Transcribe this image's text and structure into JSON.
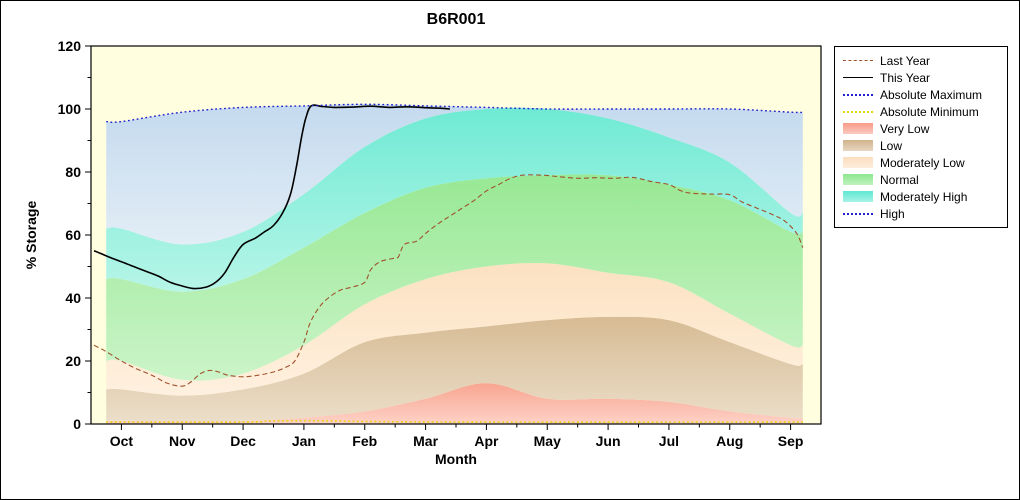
{
  "title": "B6R001",
  "chart_data": {
    "type": "area",
    "title": "B6R001",
    "xlabel": "Month",
    "ylabel": "% Storage",
    "xlim": [
      -0.5,
      11.5
    ],
    "ylim": [
      0,
      120
    ],
    "y_major_ticks": [
      0,
      20,
      40,
      60,
      80,
      100,
      120
    ],
    "y_minor_ticks": [
      10,
      30,
      50,
      70,
      90,
      110
    ],
    "x_tick_labels": [
      "Oct",
      "Nov",
      "Dec",
      "Jan",
      "Feb",
      "Mar",
      "Apr",
      "May",
      "Jun",
      "Jul",
      "Aug",
      "Sep"
    ],
    "plot_bg": "#ffffe0",
    "band_x": [
      -0.25,
      0,
      1,
      2,
      3,
      4,
      5,
      6,
      7,
      8,
      9,
      10,
      11,
      11.2
    ],
    "bands": [
      {
        "name": "Very Low",
        "color": "#f89b88",
        "top": [
          1,
          1,
          1,
          1,
          2,
          4,
          8,
          13,
          8,
          8,
          7,
          4,
          2,
          2
        ]
      },
      {
        "name": "Low",
        "color": "#d2b48c",
        "top": [
          11,
          11,
          9,
          11,
          16,
          26,
          29,
          31,
          33,
          34,
          33,
          26,
          19,
          19
        ]
      },
      {
        "name": "Moderately Low",
        "color": "#fcdebe",
        "top": [
          20,
          20,
          14,
          16,
          25,
          38,
          46,
          50,
          51,
          48,
          45,
          35,
          25,
          25
        ]
      },
      {
        "name": "Normal",
        "color": "#8ce68c",
        "top": [
          46,
          46,
          42,
          46,
          56,
          67,
          75,
          78,
          79,
          79,
          76,
          71,
          61,
          61
        ]
      },
      {
        "name": "Moderately High",
        "color": "#5fe8d2",
        "top": [
          62,
          62,
          57,
          61,
          73,
          88,
          97,
          100,
          100,
          97,
          91,
          83,
          67,
          67
        ]
      },
      {
        "name": "High",
        "color": "#bed6f0",
        "top": [
          96,
          96,
          99,
          100.5,
          101,
          101.5,
          101,
          100.5,
          100,
          100,
          100,
          100,
          99,
          99
        ]
      }
    ],
    "lines": [
      {
        "name": "Last Year",
        "color": "#a0522d",
        "style": "dashed",
        "width": 1.1,
        "points": [
          [
            -0.45,
            25
          ],
          [
            -0.25,
            23
          ],
          [
            0,
            20
          ],
          [
            0.25,
            17.5
          ],
          [
            0.5,
            15.5
          ],
          [
            0.75,
            13
          ],
          [
            1,
            12
          ],
          [
            1.15,
            13.5
          ],
          [
            1.3,
            16
          ],
          [
            1.45,
            17
          ],
          [
            1.6,
            16.5
          ],
          [
            1.75,
            15.5
          ],
          [
            2,
            15
          ],
          [
            2.25,
            15.5
          ],
          [
            2.5,
            16.5
          ],
          [
            2.7,
            18
          ],
          [
            2.85,
            20
          ],
          [
            3,
            26
          ],
          [
            3.1,
            32
          ],
          [
            3.25,
            37
          ],
          [
            3.4,
            40
          ],
          [
            3.6,
            42.5
          ],
          [
            3.8,
            43.5
          ],
          [
            4,
            45
          ],
          [
            4.1,
            49
          ],
          [
            4.25,
            51.5
          ],
          [
            4.45,
            52.5
          ],
          [
            4.55,
            53
          ],
          [
            4.65,
            57
          ],
          [
            4.85,
            58
          ],
          [
            5,
            60.5
          ],
          [
            5.2,
            63.5
          ],
          [
            5.4,
            66
          ],
          [
            5.6,
            68.5
          ],
          [
            5.8,
            71
          ],
          [
            6,
            74
          ],
          [
            6.2,
            76
          ],
          [
            6.4,
            78
          ],
          [
            6.6,
            79
          ],
          [
            6.9,
            79
          ],
          [
            7.2,
            78.5
          ],
          [
            7.5,
            78
          ],
          [
            7.8,
            78.2
          ],
          [
            8.1,
            78
          ],
          [
            8.4,
            78.3
          ],
          [
            8.7,
            77
          ],
          [
            9,
            76
          ],
          [
            9.2,
            74
          ],
          [
            9.4,
            73.2
          ],
          [
            9.7,
            73
          ],
          [
            10,
            72.8
          ],
          [
            10.2,
            70.5
          ],
          [
            10.45,
            68.5
          ],
          [
            10.7,
            66.5
          ],
          [
            10.9,
            64.5
          ],
          [
            11.1,
            60.5
          ],
          [
            11.2,
            56
          ]
        ]
      },
      {
        "name": "This Year",
        "color": "#000000",
        "style": "solid",
        "width": 1.6,
        "points": [
          [
            -0.45,
            55
          ],
          [
            -0.2,
            53
          ],
          [
            0,
            51.5
          ],
          [
            0.2,
            50
          ],
          [
            0.4,
            48.5
          ],
          [
            0.6,
            47
          ],
          [
            0.8,
            45
          ],
          [
            1,
            43.8
          ],
          [
            1.2,
            43
          ],
          [
            1.4,
            43.5
          ],
          [
            1.55,
            45
          ],
          [
            1.7,
            48
          ],
          [
            1.85,
            53
          ],
          [
            2,
            57
          ],
          [
            2.2,
            59
          ],
          [
            2.35,
            61
          ],
          [
            2.5,
            63
          ],
          [
            2.65,
            67
          ],
          [
            2.78,
            73
          ],
          [
            2.88,
            82
          ],
          [
            2.96,
            91
          ],
          [
            3.03,
            97
          ],
          [
            3.12,
            101
          ],
          [
            3.3,
            100.8
          ],
          [
            3.5,
            100.5
          ],
          [
            3.8,
            100.6
          ],
          [
            4.1,
            100.9
          ],
          [
            4.4,
            100.5
          ],
          [
            4.7,
            100.7
          ],
          [
            5,
            100.4
          ],
          [
            5.2,
            100.3
          ],
          [
            5.4,
            100
          ]
        ]
      },
      {
        "name": "Absolute Maximum",
        "color": "#2222cc",
        "style": "dotted",
        "width": 1.4,
        "points": [
          [
            -0.25,
            96
          ],
          [
            0,
            96
          ],
          [
            1,
            99
          ],
          [
            2,
            100.5
          ],
          [
            3,
            101
          ],
          [
            4,
            101.5
          ],
          [
            5,
            101
          ],
          [
            6,
            100.5
          ],
          [
            7,
            100
          ],
          [
            8,
            100
          ],
          [
            9,
            100
          ],
          [
            10,
            100
          ],
          [
            11,
            99
          ],
          [
            11.2,
            99
          ]
        ]
      },
      {
        "name": "Absolute Minimum",
        "color": "#e0d800",
        "style": "dotted",
        "width": 1.6,
        "points": [
          [
            -0.25,
            0.6
          ],
          [
            2,
            0.6
          ],
          [
            2.5,
            1
          ],
          [
            3.5,
            1
          ],
          [
            4,
            0.8
          ],
          [
            6,
            0.6
          ],
          [
            11.2,
            0.6
          ]
        ]
      }
    ],
    "legend": [
      {
        "label": "Last Year",
        "swatch": "line",
        "color": "#a0522d",
        "style": "dashed"
      },
      {
        "label": "This Year",
        "swatch": "line",
        "color": "#000000",
        "style": "solid"
      },
      {
        "label": "Absolute Maximum",
        "swatch": "line",
        "color": "#2222cc",
        "style": "dotted"
      },
      {
        "label": "Absolute Minimum",
        "swatch": "line",
        "color": "#e0d800",
        "style": "dotted"
      },
      {
        "label": "Very Low",
        "swatch": "box",
        "color": "#f89b88"
      },
      {
        "label": "Low",
        "swatch": "box",
        "color": "#d2b48c"
      },
      {
        "label": "Moderately Low",
        "swatch": "box",
        "color": "#fcdebe"
      },
      {
        "label": "Normal",
        "swatch": "box",
        "color": "#8ce68c"
      },
      {
        "label": "Moderately High",
        "swatch": "box",
        "color": "#5fe8d2"
      },
      {
        "label": "High",
        "swatch": "line",
        "color": "#2222cc",
        "style": "dotted"
      }
    ]
  }
}
